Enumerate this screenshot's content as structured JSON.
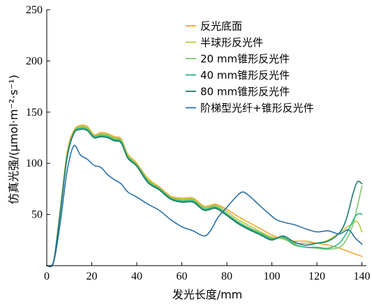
{
  "chart_data": {
    "type": "line",
    "xlabel": "发光长度/mm",
    "ylabel": "仿真光强/(μmol·m⁻²·s⁻¹)",
    "xlim": [
      0,
      142
    ],
    "ylim": [
      0,
      250
    ],
    "xticks": [
      0,
      20,
      40,
      60,
      80,
      100,
      120,
      140
    ],
    "yticks": [
      50,
      100,
      150,
      200,
      250
    ],
    "grid": false,
    "legend_position": "top-right",
    "series": [
      {
        "name": "反光底面",
        "color": "#f0a830",
        "x": [
          0,
          3,
          6,
          9,
          12,
          15,
          18,
          21,
          24,
          27,
          30,
          33,
          36,
          40,
          45,
          50,
          55,
          60,
          65,
          70,
          75,
          80,
          85,
          90,
          95,
          100,
          105,
          110,
          115,
          120,
          125,
          130,
          135,
          140
        ],
        "y": [
          0,
          4,
          55,
          110,
          132,
          137,
          136,
          128,
          130,
          129,
          126,
          124,
          109,
          100,
          85,
          77,
          68,
          66,
          66,
          58,
          60,
          55,
          48,
          42,
          36,
          30,
          26,
          24,
          24,
          22,
          20,
          17,
          13,
          9
        ]
      },
      {
        "name": "半球形反光件",
        "color": "#b8c83c",
        "x": [
          0,
          3,
          6,
          9,
          12,
          15,
          18,
          21,
          24,
          27,
          30,
          33,
          36,
          40,
          45,
          50,
          55,
          60,
          65,
          70,
          75,
          80,
          85,
          90,
          95,
          100,
          105,
          110,
          115,
          120,
          125,
          130,
          135,
          138,
          140
        ],
        "y": [
          0,
          4,
          54,
          108,
          131,
          136,
          135,
          127,
          129,
          128,
          125,
          123,
          108,
          99,
          84,
          76,
          67,
          65,
          65,
          57,
          59,
          53,
          45,
          39,
          33,
          28,
          26,
          22,
          22,
          22,
          25,
          32,
          40,
          43,
          33
        ]
      },
      {
        "name": "20 mm锥形反光件",
        "color": "#7cc86a",
        "x": [
          0,
          3,
          6,
          9,
          12,
          15,
          18,
          21,
          24,
          27,
          30,
          33,
          36,
          40,
          45,
          50,
          55,
          60,
          65,
          70,
          75,
          80,
          85,
          90,
          95,
          100,
          105,
          110,
          115,
          120,
          125,
          130,
          133,
          136,
          138,
          140
        ],
        "y": [
          0,
          4,
          53,
          107,
          130,
          135,
          134,
          126,
          128,
          127,
          124,
          122,
          107,
          98,
          83,
          75,
          66,
          64,
          64,
          56,
          58,
          51,
          43,
          37,
          32,
          27,
          27,
          20,
          18,
          17,
          16,
          18,
          25,
          40,
          58,
          78
        ]
      },
      {
        "name": "40 mm锥形反光件",
        "color": "#2ab48a",
        "x": [
          0,
          3,
          6,
          9,
          12,
          15,
          18,
          21,
          24,
          27,
          30,
          33,
          36,
          40,
          45,
          50,
          55,
          60,
          65,
          70,
          75,
          80,
          85,
          90,
          95,
          100,
          105,
          110,
          115,
          120,
          125,
          130,
          134,
          137,
          139,
          140
        ],
        "y": [
          0,
          4,
          53,
          106,
          130,
          134,
          133,
          126,
          127,
          126,
          123,
          121,
          106,
          98,
          82,
          75,
          66,
          63,
          63,
          55,
          57,
          50,
          42,
          36,
          31,
          26,
          28,
          21,
          18,
          18,
          17,
          22,
          35,
          48,
          51,
          50
        ]
      },
      {
        "name": "80 mm锥形反光件",
        "color": "#1e7a68",
        "x": [
          0,
          3,
          6,
          9,
          12,
          15,
          18,
          21,
          24,
          27,
          30,
          33,
          36,
          40,
          45,
          50,
          55,
          60,
          65,
          70,
          75,
          80,
          85,
          90,
          95,
          100,
          105,
          110,
          115,
          120,
          125,
          130,
          133,
          136,
          138,
          140
        ],
        "y": [
          0,
          4,
          52,
          105,
          129,
          133,
          132,
          125,
          126,
          125,
          122,
          120,
          105,
          97,
          81,
          74,
          65,
          62,
          62,
          54,
          56,
          49,
          41,
          35,
          30,
          25,
          29,
          23,
          20,
          22,
          24,
          32,
          45,
          70,
          82,
          80
        ]
      },
      {
        "name": "阶梯型光纤+锥形反光件",
        "color": "#2a70a8",
        "x": [
          0,
          3,
          6,
          9,
          12,
          15,
          18,
          21,
          24,
          27,
          30,
          33,
          36,
          40,
          45,
          50,
          55,
          60,
          65,
          70,
          73,
          76,
          80,
          84,
          87,
          90,
          94,
          98,
          102,
          106,
          110,
          115,
          120,
          125,
          130,
          134,
          137,
          140
        ],
        "y": [
          0,
          3,
          42,
          92,
          117,
          108,
          104,
          98,
          96,
          89,
          84,
          80,
          72,
          67,
          60,
          54,
          45,
          38,
          34,
          29,
          35,
          47,
          57,
          67,
          72,
          68,
          60,
          52,
          45,
          42,
          40,
          36,
          33,
          34,
          31,
          35,
          27,
          21
        ]
      }
    ]
  }
}
